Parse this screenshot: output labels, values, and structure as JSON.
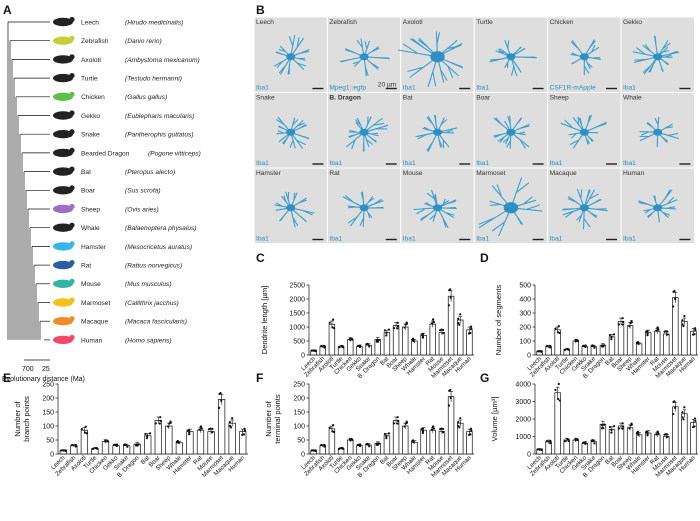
{
  "panel_labels": [
    "A",
    "B",
    "C",
    "D",
    "E",
    "F",
    "G"
  ],
  "species": [
    {
      "name": "Leech",
      "latin": "(Hirudo medicinalis)",
      "color": "#222222"
    },
    {
      "name": "Zebrafish",
      "latin": "(Danio rerio)",
      "color": "#c6cf3a"
    },
    {
      "name": "Axolotl",
      "latin": "(Ambystoma mexicanum)",
      "color": "#222222"
    },
    {
      "name": "Turtle",
      "latin": "(Testudo hermanni)",
      "color": "#222222"
    },
    {
      "name": "Chicken",
      "latin": "(Gallus gallus)",
      "color": "#5fbf4a"
    },
    {
      "name": "Gekko",
      "latin": "(Eublepharis macularis)",
      "color": "#222222"
    },
    {
      "name": "Snake",
      "latin": "(Pantherophis guttatus)",
      "color": "#222222"
    },
    {
      "name": "Bearded Dragon",
      "latin": "(Pogone vitticeps)",
      "color": "#222222"
    },
    {
      "name": "Bat",
      "latin": "(Pteropus alecto)",
      "color": "#222222"
    },
    {
      "name": "Boar",
      "latin": "(Sus scrofa)",
      "color": "#222222"
    },
    {
      "name": "Sheep",
      "latin": "(Ovis aries)",
      "color": "#9b6fc4"
    },
    {
      "name": "Whale",
      "latin": "(Balaenoptera physalus)",
      "color": "#222222"
    },
    {
      "name": "Hamster",
      "latin": "(Mesocricetus auratus)",
      "color": "#38b6e8"
    },
    {
      "name": "Rat",
      "latin": "(Rattus norvegicus)",
      "color": "#2a5fa8"
    },
    {
      "name": "Mouse",
      "latin": "(Mus musculus)",
      "color": "#34b3a7"
    },
    {
      "name": "Marmoset",
      "latin": "(Callithrix jacchus)",
      "color": "#f3c21a"
    },
    {
      "name": "Macaque",
      "latin": "(Macaca fascicularis)",
      "color": "#f28a2a"
    },
    {
      "name": "Human",
      "latin": "(Homo sapiens)",
      "color": "#ef4a6a"
    }
  ],
  "tree_scale": {
    "ticks": [
      "700",
      "25"
    ],
    "label": "Evolutionary distance (Ma)"
  },
  "panel_b": {
    "scale_bar_label": "20 µm",
    "tiles": [
      {
        "name": "Leech",
        "stain": "Iba1"
      },
      {
        "name": "Zebrafish",
        "stain": "Mpeg1::egfp"
      },
      {
        "name": "Axolotl",
        "stain": "Iba1"
      },
      {
        "name": "Turtle",
        "stain": "Iba1"
      },
      {
        "name": "Chicken",
        "stain": "CSF1R-mApple"
      },
      {
        "name": "Gekko",
        "stain": "Iba1"
      },
      {
        "name": "Snake",
        "stain": "Iba1"
      },
      {
        "name": "B. Dragon",
        "stain": "Iba1"
      },
      {
        "name": "Bat",
        "stain": "Iba1"
      },
      {
        "name": "Boar",
        "stain": "Iba1"
      },
      {
        "name": "Sheep",
        "stain": "Iba1"
      },
      {
        "name": "Whale",
        "stain": "Iba1"
      },
      {
        "name": "Hamster",
        "stain": "Iba1"
      },
      {
        "name": "Rat",
        "stain": "Iba1"
      },
      {
        "name": "Mouse",
        "stain": "Iba1"
      },
      {
        "name": "Marmoset",
        "stain": "Iba1"
      },
      {
        "name": "Macaque",
        "stain": "Iba1"
      },
      {
        "name": "Human",
        "stain": "Iba1"
      }
    ]
  },
  "chart_data": [
    {
      "type": "bar",
      "panel": "C",
      "ylabel": "Dendrite length [µm]",
      "ylim": [
        0,
        2500
      ],
      "yticks": [
        0,
        500,
        1000,
        1500,
        2000,
        2500
      ],
      "categories": [
        "Leech",
        "Zebrafish",
        "Axolotl",
        "Turtle",
        "Chicken",
        "Gekko",
        "Snake",
        "B. Dragon",
        "Bat",
        "Boar",
        "Sheep",
        "Whale",
        "Hamster",
        "Rat",
        "Mouse",
        "Marmoset",
        "Macaque",
        "Human"
      ],
      "values": [
        150,
        300,
        1100,
        300,
        550,
        300,
        350,
        550,
        800,
        1050,
        1000,
        500,
        700,
        1100,
        800,
        2100,
        1250,
        900
      ]
    },
    {
      "type": "bar",
      "panel": "D",
      "ylabel": "Number of segments",
      "ylim": [
        0,
        500
      ],
      "yticks": [
        0,
        100,
        200,
        300,
        400,
        500
      ],
      "categories": [
        "Leech",
        "Zebrafish",
        "Axolotl",
        "Turtle",
        "Chicken",
        "Gekko",
        "Snake",
        "B. Dragon",
        "Bat",
        "Boar",
        "Sheep",
        "Whale",
        "Hamster",
        "Rat",
        "Mouse",
        "Marmoset",
        "Macaque",
        "Human"
      ],
      "values": [
        25,
        60,
        180,
        40,
        100,
        60,
        60,
        70,
        130,
        240,
        210,
        80,
        160,
        170,
        150,
        410,
        240,
        170
      ]
    },
    {
      "type": "bar",
      "panel": "E",
      "ylabel": "Number of branch points",
      "ylim": [
        0,
        250
      ],
      "yticks": [
        0,
        50,
        100,
        150,
        200,
        250
      ],
      "categories": [
        "Leech",
        "Zebrafish",
        "Axolotl",
        "Turtle",
        "Chicken",
        "Gekko",
        "Snake",
        "B. Dragon",
        "Bat",
        "Boar",
        "Sheep",
        "Whale",
        "Hamster",
        "Rat",
        "Mouse",
        "Marmoset",
        "Macaque",
        "Human"
      ],
      "values": [
        12,
        30,
        85,
        20,
        45,
        30,
        30,
        35,
        65,
        120,
        100,
        40,
        80,
        85,
        80,
        195,
        110,
        80
      ]
    },
    {
      "type": "bar",
      "panel": "F",
      "ylabel": "Number of terminal points",
      "ylim": [
        0,
        250
      ],
      "yticks": [
        0,
        50,
        100,
        150,
        200,
        250
      ],
      "categories": [
        "Leech",
        "Zebrafish",
        "Axolotl",
        "Turtle",
        "Chicken",
        "Gekko",
        "Snake",
        "B. Dragon",
        "Bat",
        "Boar",
        "Sheep",
        "Whale",
        "Hamster",
        "Rat",
        "Mouse",
        "Marmoset",
        "Macaque",
        "Human"
      ],
      "values": [
        12,
        30,
        90,
        20,
        50,
        30,
        32,
        38,
        65,
        120,
        100,
        42,
        85,
        85,
        80,
        205,
        110,
        80
      ]
    },
    {
      "type": "bar",
      "panel": "G",
      "ylabel": "Volume [µm³]",
      "ylim": [
        0,
        4000
      ],
      "yticks": [
        0,
        1000,
        2000,
        3000,
        4000
      ],
      "categories": [
        "Leech",
        "Zebrafish",
        "Axolotl",
        "Turtle",
        "Chicken",
        "Gekko",
        "Snake",
        "B. Dragon",
        "Bat",
        "Boar",
        "Sheep",
        "Whale",
        "Hamster",
        "Rat",
        "Mouse",
        "Marmoset",
        "Macaque",
        "Human"
      ],
      "values": [
        250,
        700,
        3500,
        800,
        800,
        600,
        700,
        1700,
        1400,
        1600,
        1500,
        1100,
        1200,
        1100,
        1000,
        2700,
        2300,
        1800
      ]
    }
  ]
}
